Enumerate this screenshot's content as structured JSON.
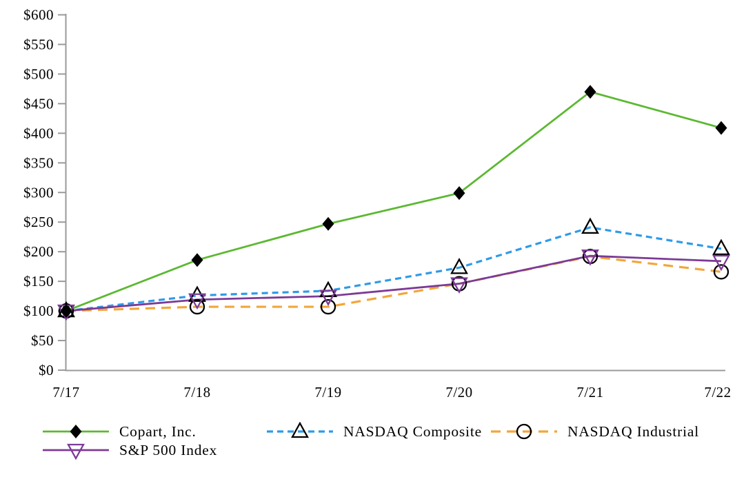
{
  "chart_data": {
    "type": "line",
    "x_categories": [
      "7/17",
      "7/18",
      "7/19",
      "7/20",
      "7/21",
      "7/22"
    ],
    "y_ticks": [
      "$0",
      "$50",
      "$100",
      "$150",
      "$200",
      "$250",
      "$300",
      "$350",
      "$400",
      "$450",
      "$500",
      "$550",
      "$600"
    ],
    "ylim": [
      0,
      600
    ],
    "ytick_step": 50,
    "grid": false,
    "legend_position": "bottom",
    "series": [
      {
        "name": "NASDAQ Composite",
        "values": [
          100,
          126,
          134,
          173,
          241,
          205
        ],
        "color": "#2E9BE8",
        "line_style": "dashed-short",
        "marker": "open-triangle-up",
        "marker_color": "#000000"
      },
      {
        "name": "NASDAQ Industrial",
        "values": [
          100,
          107,
          107,
          146,
          192,
          166
        ],
        "color": "#F2A63B",
        "line_style": "dashed-long",
        "marker": "open-circle",
        "marker_color": "#000000"
      },
      {
        "name": "S&P 500 Index",
        "values": [
          100,
          119,
          125,
          146,
          193,
          184
        ],
        "color": "#7C3A96",
        "line_style": "solid",
        "marker": "open-triangle-down",
        "marker_color": "#7C3A96"
      },
      {
        "name": "Copart, Inc.",
        "values": [
          100,
          186,
          247,
          299,
          470,
          409
        ],
        "color": "#5CB831",
        "line_style": "solid",
        "marker": "filled-diamond",
        "marker_color": "#000000"
      }
    ],
    "legend_rows": [
      [
        "Copart, Inc.",
        "NASDAQ Composite",
        "NASDAQ Industrial"
      ],
      [
        "S&P 500 Index"
      ]
    ]
  },
  "colors": {
    "axis": "#9a9a9a",
    "text": "#000000"
  }
}
